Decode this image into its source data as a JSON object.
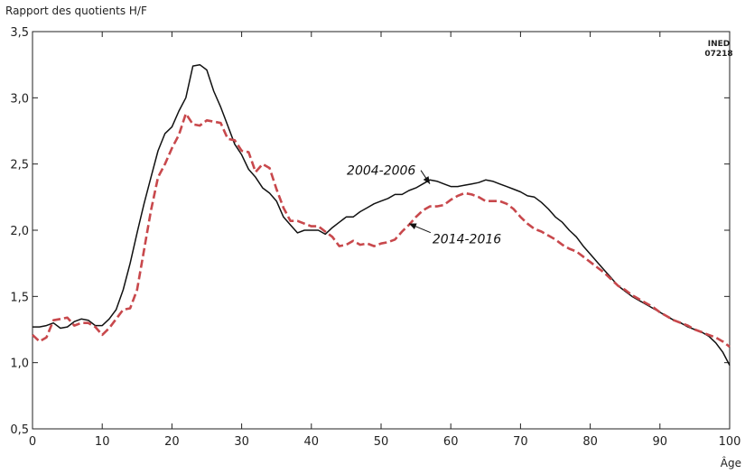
{
  "chart_data": {
    "type": "line",
    "ylabel": "Rapport des quotients H/F",
    "xlabel": "Âge",
    "source_tag": [
      "INED",
      "07218"
    ],
    "xlim": [
      0,
      100
    ],
    "ylim": [
      0.5,
      3.5
    ],
    "x_ticks": [
      0,
      10,
      20,
      30,
      40,
      50,
      60,
      70,
      80,
      90,
      100
    ],
    "y_ticks": [
      "0,5",
      "1,0",
      "1,5",
      "2,0",
      "2,5",
      "3,0",
      "3,5"
    ],
    "grid": false,
    "series": [
      {
        "name": "2004-2006",
        "color": "#111111",
        "style": "solid",
        "points": [
          [
            0,
            1.27
          ],
          [
            1,
            1.27
          ],
          [
            2,
            1.28
          ],
          [
            3,
            1.3
          ],
          [
            4,
            1.26
          ],
          [
            5,
            1.27
          ],
          [
            6,
            1.31
          ],
          [
            7,
            1.33
          ],
          [
            8,
            1.32
          ],
          [
            9,
            1.28
          ],
          [
            10,
            1.28
          ],
          [
            11,
            1.33
          ],
          [
            12,
            1.4
          ],
          [
            13,
            1.55
          ],
          [
            14,
            1.75
          ],
          [
            15,
            1.98
          ],
          [
            16,
            2.2
          ],
          [
            17,
            2.4
          ],
          [
            18,
            2.6
          ],
          [
            19,
            2.73
          ],
          [
            20,
            2.78
          ],
          [
            21,
            2.9
          ],
          [
            22,
            3.0
          ],
          [
            23,
            3.24
          ],
          [
            24,
            3.25
          ],
          [
            25,
            3.21
          ],
          [
            26,
            3.05
          ],
          [
            27,
            2.93
          ],
          [
            28,
            2.79
          ],
          [
            29,
            2.65
          ],
          [
            30,
            2.57
          ],
          [
            31,
            2.46
          ],
          [
            32,
            2.4
          ],
          [
            33,
            2.32
          ],
          [
            34,
            2.28
          ],
          [
            35,
            2.22
          ],
          [
            36,
            2.1
          ],
          [
            37,
            2.04
          ],
          [
            38,
            1.98
          ],
          [
            39,
            2.0
          ],
          [
            40,
            2.0
          ],
          [
            41,
            2.0
          ],
          [
            42,
            1.97
          ],
          [
            43,
            2.02
          ],
          [
            44,
            2.06
          ],
          [
            45,
            2.1
          ],
          [
            46,
            2.1
          ],
          [
            47,
            2.14
          ],
          [
            48,
            2.17
          ],
          [
            49,
            2.2
          ],
          [
            50,
            2.22
          ],
          [
            51,
            2.24
          ],
          [
            52,
            2.27
          ],
          [
            53,
            2.27
          ],
          [
            54,
            2.3
          ],
          [
            55,
            2.32
          ],
          [
            56,
            2.35
          ],
          [
            57,
            2.38
          ],
          [
            58,
            2.37
          ],
          [
            59,
            2.35
          ],
          [
            60,
            2.33
          ],
          [
            61,
            2.33
          ],
          [
            62,
            2.34
          ],
          [
            63,
            2.35
          ],
          [
            64,
            2.36
          ],
          [
            65,
            2.38
          ],
          [
            66,
            2.37
          ],
          [
            67,
            2.35
          ],
          [
            68,
            2.33
          ],
          [
            69,
            2.31
          ],
          [
            70,
            2.29
          ],
          [
            71,
            2.26
          ],
          [
            72,
            2.25
          ],
          [
            73,
            2.21
          ],
          [
            74,
            2.16
          ],
          [
            75,
            2.1
          ],
          [
            76,
            2.06
          ],
          [
            77,
            2.0
          ],
          [
            78,
            1.95
          ],
          [
            79,
            1.88
          ],
          [
            80,
            1.82
          ],
          [
            81,
            1.76
          ],
          [
            82,
            1.7
          ],
          [
            83,
            1.64
          ],
          [
            84,
            1.58
          ],
          [
            85,
            1.54
          ],
          [
            86,
            1.5
          ],
          [
            87,
            1.47
          ],
          [
            88,
            1.44
          ],
          [
            89,
            1.41
          ],
          [
            90,
            1.38
          ],
          [
            91,
            1.35
          ],
          [
            92,
            1.32
          ],
          [
            93,
            1.3
          ],
          [
            94,
            1.27
          ],
          [
            95,
            1.25
          ],
          [
            96,
            1.23
          ],
          [
            97,
            1.2
          ],
          [
            98,
            1.15
          ],
          [
            99,
            1.08
          ],
          [
            100,
            0.98
          ]
        ]
      },
      {
        "name": "2014-2016",
        "color": "#c8484c",
        "style": "dashed",
        "points": [
          [
            0,
            1.21
          ],
          [
            1,
            1.16
          ],
          [
            2,
            1.19
          ],
          [
            3,
            1.32
          ],
          [
            4,
            1.33
          ],
          [
            5,
            1.34
          ],
          [
            6,
            1.28
          ],
          [
            7,
            1.3
          ],
          [
            8,
            1.3
          ],
          [
            9,
            1.27
          ],
          [
            10,
            1.21
          ],
          [
            11,
            1.26
          ],
          [
            12,
            1.33
          ],
          [
            13,
            1.4
          ],
          [
            14,
            1.41
          ],
          [
            15,
            1.55
          ],
          [
            16,
            1.85
          ],
          [
            17,
            2.15
          ],
          [
            18,
            2.4
          ],
          [
            19,
            2.5
          ],
          [
            20,
            2.62
          ],
          [
            21,
            2.72
          ],
          [
            22,
            2.88
          ],
          [
            23,
            2.8
          ],
          [
            24,
            2.79
          ],
          [
            25,
            2.83
          ],
          [
            26,
            2.82
          ],
          [
            27,
            2.81
          ],
          [
            28,
            2.69
          ],
          [
            29,
            2.68
          ],
          [
            30,
            2.6
          ],
          [
            31,
            2.59
          ],
          [
            32,
            2.44
          ],
          [
            33,
            2.5
          ],
          [
            34,
            2.47
          ],
          [
            35,
            2.31
          ],
          [
            36,
            2.17
          ],
          [
            37,
            2.07
          ],
          [
            38,
            2.07
          ],
          [
            39,
            2.05
          ],
          [
            40,
            2.03
          ],
          [
            41,
            2.03
          ],
          [
            42,
            1.99
          ],
          [
            43,
            1.95
          ],
          [
            44,
            1.88
          ],
          [
            45,
            1.89
          ],
          [
            46,
            1.92
          ],
          [
            47,
            1.89
          ],
          [
            48,
            1.9
          ],
          [
            49,
            1.88
          ],
          [
            50,
            1.9
          ],
          [
            51,
            1.91
          ],
          [
            52,
            1.93
          ],
          [
            53,
            1.99
          ],
          [
            54,
            2.04
          ],
          [
            55,
            2.1
          ],
          [
            56,
            2.15
          ],
          [
            57,
            2.18
          ],
          [
            58,
            2.18
          ],
          [
            59,
            2.19
          ],
          [
            60,
            2.23
          ],
          [
            61,
            2.26
          ],
          [
            62,
            2.28
          ],
          [
            63,
            2.27
          ],
          [
            64,
            2.25
          ],
          [
            65,
            2.22
          ],
          [
            66,
            2.22
          ],
          [
            67,
            2.22
          ],
          [
            68,
            2.2
          ],
          [
            69,
            2.16
          ],
          [
            70,
            2.1
          ],
          [
            71,
            2.05
          ],
          [
            72,
            2.01
          ],
          [
            73,
            1.99
          ],
          [
            74,
            1.96
          ],
          [
            75,
            1.93
          ],
          [
            76,
            1.89
          ],
          [
            77,
            1.86
          ],
          [
            78,
            1.84
          ],
          [
            79,
            1.8
          ],
          [
            80,
            1.76
          ],
          [
            81,
            1.72
          ],
          [
            82,
            1.68
          ],
          [
            83,
            1.63
          ],
          [
            84,
            1.58
          ],
          [
            85,
            1.55
          ],
          [
            86,
            1.51
          ],
          [
            87,
            1.48
          ],
          [
            88,
            1.45
          ],
          [
            89,
            1.42
          ],
          [
            90,
            1.38
          ],
          [
            91,
            1.35
          ],
          [
            92,
            1.32
          ],
          [
            93,
            1.3
          ],
          [
            94,
            1.28
          ],
          [
            95,
            1.25
          ],
          [
            96,
            1.23
          ],
          [
            97,
            1.21
          ],
          [
            98,
            1.19
          ],
          [
            99,
            1.16
          ],
          [
            100,
            1.12
          ]
        ]
      }
    ],
    "annotations": [
      {
        "text": "2004-2006",
        "series": "2004-2006",
        "arrow_to": [
          57,
          2.35
        ]
      },
      {
        "text": "2014-2016",
        "series": "2014-2016",
        "arrow_to": [
          54,
          2.05
        ]
      }
    ]
  }
}
